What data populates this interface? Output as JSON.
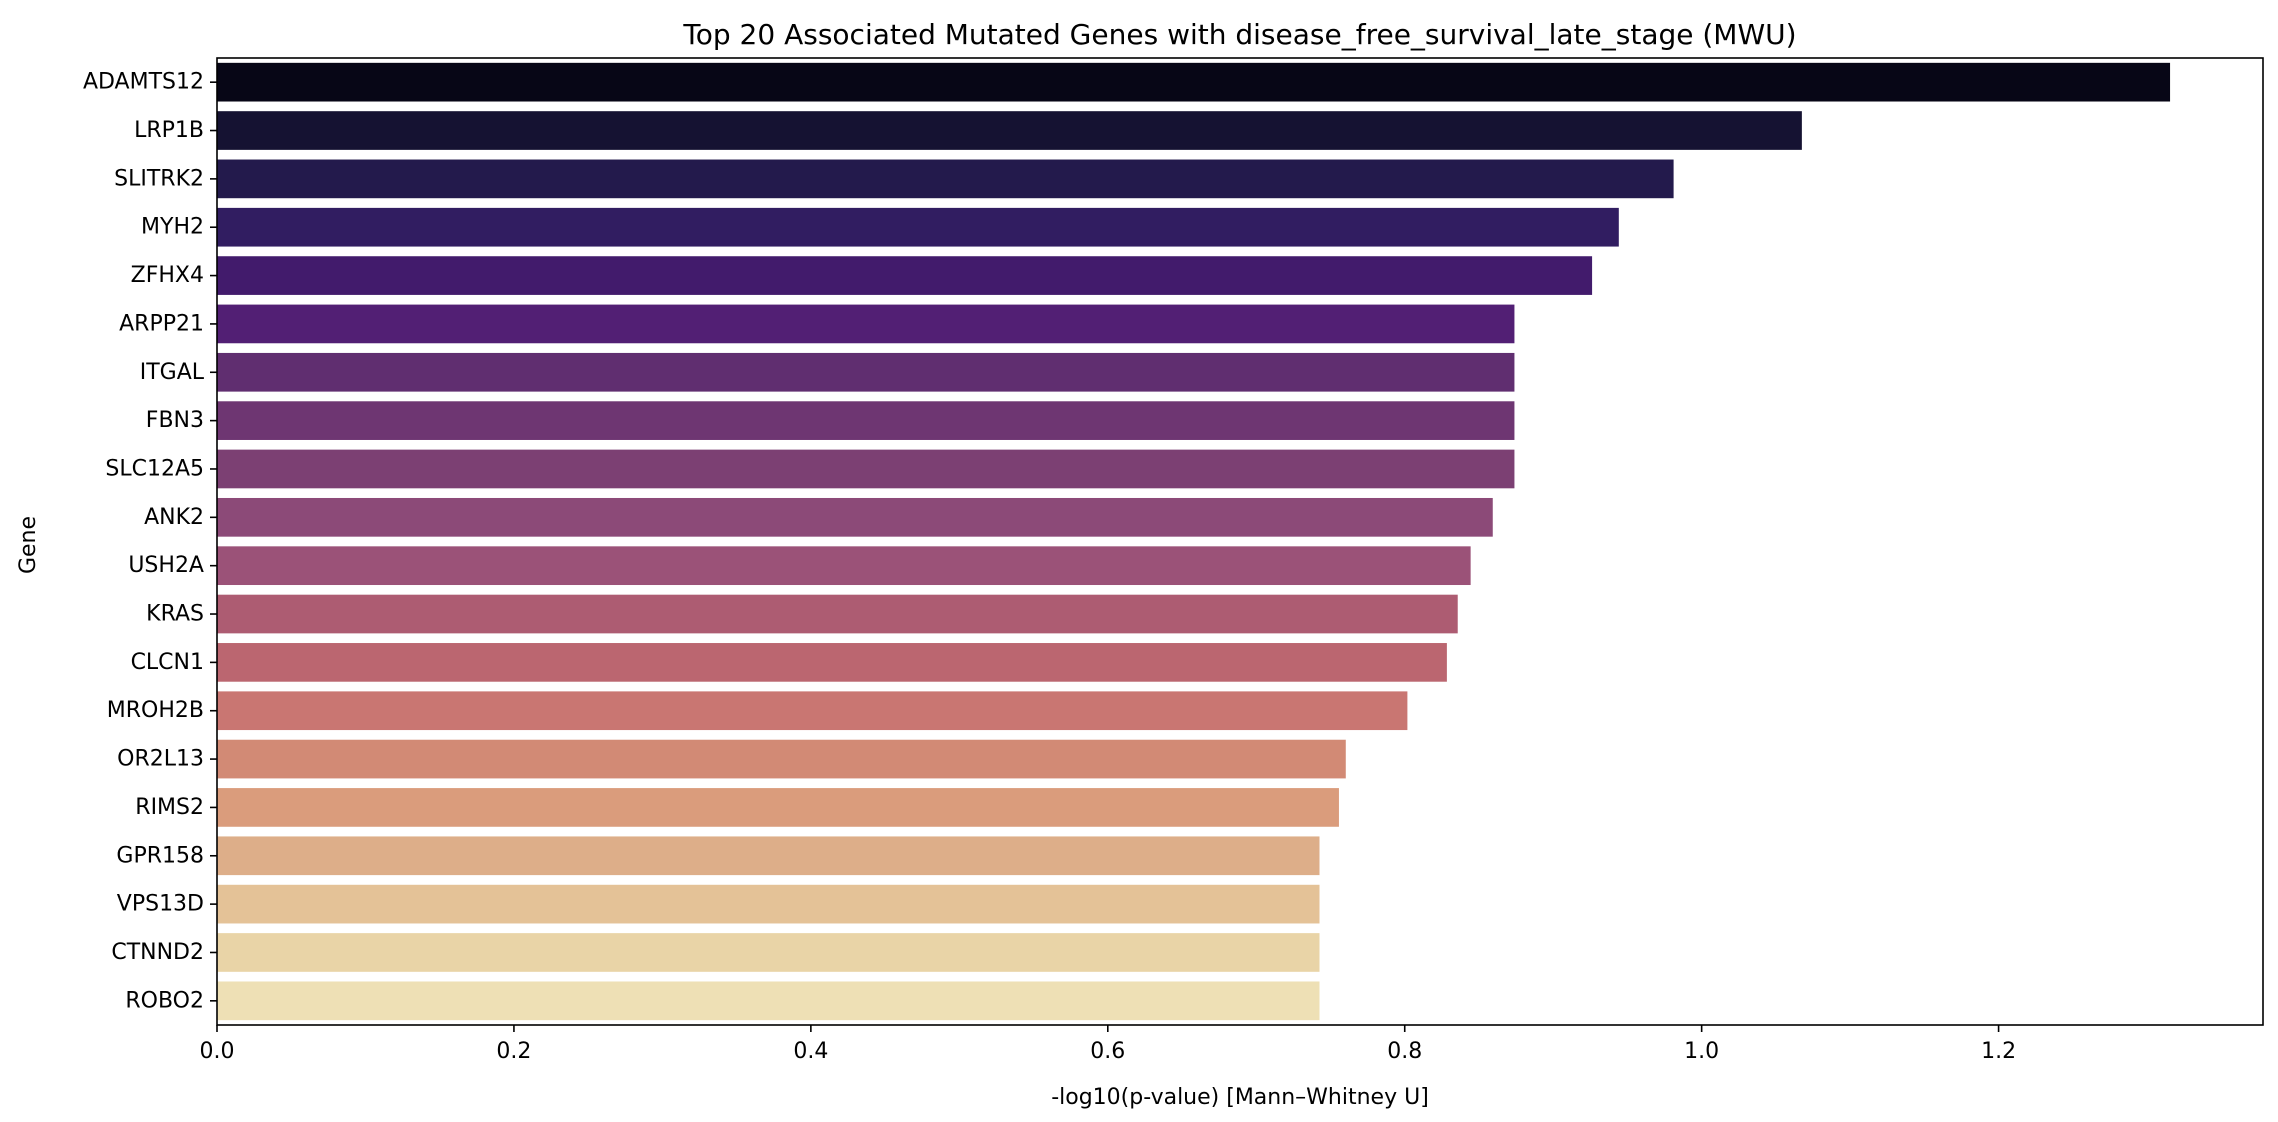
{
  "chart_data": {
    "type": "bar",
    "orientation": "horizontal",
    "title": "Top 20 Associated Mutated Genes with disease_free_survival_late_stage (MWU)",
    "xlabel": "-log10(p-value) [Mann–Whitney U]",
    "ylabel": "Gene",
    "xlim": [
      0,
      1.3781
    ],
    "xticks": [
      "0.0",
      "0.2",
      "0.4",
      "0.6",
      "0.8",
      "1.0",
      "1.2"
    ],
    "xtick_values": [
      0,
      0.2,
      0.4,
      0.6,
      0.8,
      1.0,
      1.2
    ],
    "grid": false,
    "legend": "none",
    "colormap": "magma",
    "categories": [
      "ADAMTS12",
      "LRP1B",
      "SLITRK2",
      "MYH2",
      "ZFHX4",
      "ARPP21",
      "ITGAL",
      "FBN3",
      "SLC12A5",
      "ANK2",
      "USH2A",
      "KRAS",
      "CLCN1",
      "MROH2B",
      "OR2L13",
      "RIMS2",
      "GPR158",
      "VPS13D",
      "CTNND2",
      "ROBO2"
    ],
    "values": [
      1.3155,
      1.0675,
      0.9811,
      0.9442,
      0.9262,
      0.8739,
      0.8739,
      0.8739,
      0.8739,
      0.8593,
      0.8444,
      0.8357,
      0.8284,
      0.8018,
      0.7603,
      0.7557,
      0.7426,
      0.7426,
      0.7426,
      0.7426
    ],
    "colors": [
      "#070616",
      "#151232",
      "#231a4c",
      "#311d61",
      "#421b6c",
      "#521f74",
      "#602e70",
      "#6e3672",
      "#7c4073",
      "#8c4a78",
      "#9b5278",
      "#ad5c72",
      "#bb6670",
      "#c97672",
      "#d28a75",
      "#da9c7c",
      "#ddae89",
      "#e4c297",
      "#e9d4a7",
      "#eee0b5"
    ]
  }
}
